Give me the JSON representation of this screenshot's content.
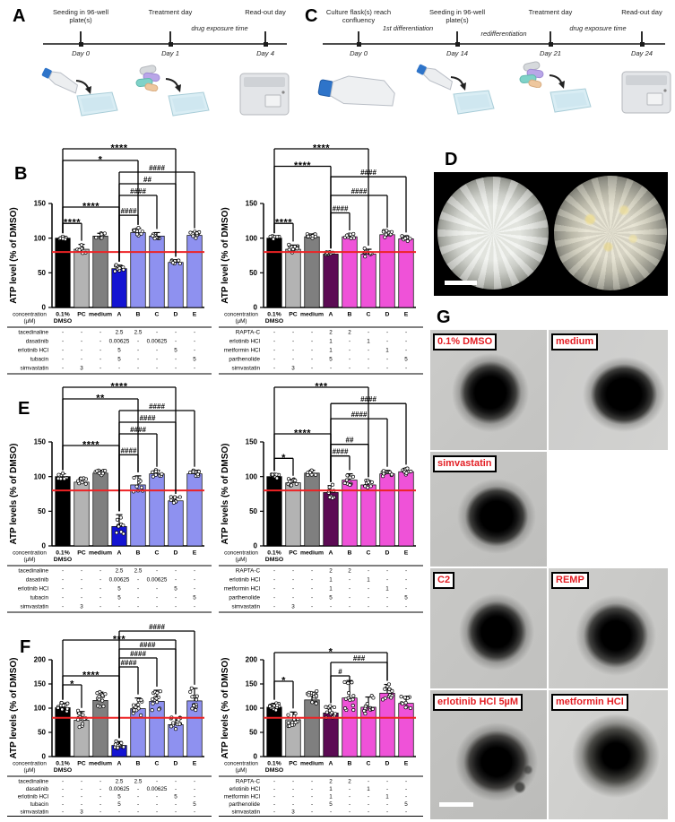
{
  "panel_letters": {
    "A": "A",
    "B": "B",
    "C": "C",
    "D": "D",
    "E": "E",
    "F": "F",
    "G": "G"
  },
  "timeline_a": {
    "milestones": [
      {
        "top": "Seeding in 96-well plate(s)",
        "day": "Day 0"
      },
      {
        "top": "Treatment day",
        "day": "Day 1"
      },
      {
        "top": "Read-out day",
        "day": "Day 4"
      }
    ],
    "interval": "drug exposure time"
  },
  "timeline_c": {
    "milestones": [
      {
        "top": "Culture flask(s) reach confluency",
        "day": "Day 0"
      },
      {
        "top": "Seeding in 96-well plate(s)",
        "day": "Day 14"
      },
      {
        "top": "Treatment day",
        "day": "Day 21"
      },
      {
        "top": "Read-out day",
        "day": "Day 24"
      }
    ],
    "intervals": [
      "1st differentiation",
      "redifferentiation",
      "drug exposure time"
    ]
  },
  "panel_g": {
    "cells": [
      {
        "label": "0.1% DMSO"
      },
      {
        "label": "medium"
      },
      {
        "label": "simvastatin"
      },
      {
        "label": ""
      },
      {
        "label": "C2"
      },
      {
        "label": "REMP"
      },
      {
        "label": "erlotinib HCl 5µM"
      },
      {
        "label": "metformin HCl"
      }
    ]
  },
  "chart_common": {
    "x_axis_title": [
      "concentration",
      "(µM)"
    ],
    "threshold": {
      "value": 80,
      "color": "#ed2224"
    }
  },
  "chart_data": [
    {
      "id": "B-left",
      "panel": "B",
      "side": "left",
      "type": "bar",
      "ylabel": "ATP level (% of DMSO)",
      "ylim": [
        0,
        150
      ],
      "yticks": [
        0,
        50,
        100,
        150
      ],
      "categories": [
        "0.1% DMSO",
        "PC",
        "medium",
        "A",
        "B",
        "C",
        "D",
        "E"
      ],
      "values": [
        100,
        84,
        103,
        56,
        108,
        103,
        65,
        104
      ],
      "errors": [
        2,
        7,
        4,
        5,
        6,
        5,
        3,
        5
      ],
      "n_points": 9,
      "bar_colors": [
        "#000000",
        "#b3b3b3",
        "#7f7f7f",
        "#1414d2",
        "#8e91f0",
        "#8e91f0",
        "#8e91f0",
        "#8e91f0"
      ],
      "brackets": [
        {
          "from": 0,
          "to": 6,
          "label": "****",
          "level": 7
        },
        {
          "from": 0,
          "to": 4,
          "label": "*",
          "level": 6
        },
        {
          "from": 3,
          "to": 7,
          "label": "####",
          "level": 5
        },
        {
          "from": 3,
          "to": 6,
          "label": "##",
          "level": 4
        },
        {
          "from": 3,
          "to": 5,
          "label": "####",
          "level": 3
        },
        {
          "from": 0,
          "to": 3,
          "label": "****",
          "level": 2
        },
        {
          "from": 3,
          "to": 4,
          "label": "####",
          "level": 1.3
        },
        {
          "from": 0,
          "to": 1,
          "label": "****",
          "level": 0.6
        }
      ],
      "dose_table": {
        "rows": [
          {
            "name": "tacedinaline",
            "values": [
              "-",
              "-",
              "-",
              "2.5",
              "2.5",
              "-",
              "-",
              "-"
            ]
          },
          {
            "name": "dasatinib",
            "values": [
              "-",
              "-",
              "-",
              "0.00625",
              "-",
              "0.00625",
              "-",
              "-"
            ]
          },
          {
            "name": "erlotinib HCl",
            "values": [
              "-",
              "-",
              "-",
              "5",
              "-",
              "-",
              "5",
              "-"
            ]
          },
          {
            "name": "tubacin",
            "values": [
              "-",
              "-",
              "-",
              "5",
              "-",
              "-",
              "-",
              "5"
            ]
          },
          {
            "name": "simvastatin",
            "values": [
              "-",
              "3",
              "-",
              "-",
              "-",
              "-",
              "-",
              "-"
            ]
          }
        ]
      }
    },
    {
      "id": "B-right",
      "panel": "B",
      "side": "right",
      "type": "bar",
      "ylabel": "ATP level (% of DMSO)",
      "ylim": [
        0,
        150
      ],
      "yticks": [
        0,
        50,
        100,
        150
      ],
      "categories": [
        "0.1% DMSO",
        "PC",
        "medium",
        "A",
        "B",
        "C",
        "D",
        "E"
      ],
      "values": [
        100,
        84,
        102,
        77,
        102,
        77,
        105,
        99
      ],
      "errors": [
        2,
        6,
        4,
        3,
        4,
        7,
        5,
        4
      ],
      "n_points": 9,
      "bar_colors": [
        "#000000",
        "#b3b3b3",
        "#7f7f7f",
        "#5c0b54",
        "#ef52d8",
        "#ef52d8",
        "#ef52d8",
        "#ef52d8"
      ],
      "brackets": [
        {
          "from": 0,
          "to": 5,
          "label": "****",
          "level": 7
        },
        {
          "from": 0,
          "to": 3,
          "label": "****",
          "level": 5.5
        },
        {
          "from": 3,
          "to": 7,
          "label": "####",
          "level": 4.6
        },
        {
          "from": 3,
          "to": 6,
          "label": "####",
          "level": 3
        },
        {
          "from": 3,
          "to": 4,
          "label": "####",
          "level": 1.5
        },
        {
          "from": 0,
          "to": 1,
          "label": "****",
          "level": 0.6
        }
      ],
      "dose_table": {
        "rows": [
          {
            "name": "RAPTA-C",
            "values": [
              "-",
              "-",
              "-",
              "2",
              "2",
              "-",
              "-",
              "-"
            ]
          },
          {
            "name": "erlotinib HCl",
            "values": [
              "-",
              "-",
              "-",
              "1",
              "-",
              "1",
              "-",
              "-"
            ]
          },
          {
            "name": "metformin HCl",
            "values": [
              "-",
              "-",
              "-",
              "1",
              "-",
              "-",
              "1",
              "-"
            ]
          },
          {
            "name": "parthenolide",
            "values": [
              "-",
              "-",
              "-",
              "5",
              "-",
              "-",
              "-",
              "5"
            ]
          },
          {
            "name": "simvastatin",
            "values": [
              "-",
              "3",
              "-",
              "-",
              "-",
              "-",
              "-",
              "-"
            ]
          }
        ]
      }
    },
    {
      "id": "E-left",
      "panel": "E",
      "side": "left",
      "type": "bar",
      "ylabel": "ATP levels (% of DMSO)",
      "ylim": [
        0,
        150
      ],
      "yticks": [
        0,
        50,
        100,
        150
      ],
      "categories": [
        "0.1% DMSO",
        "PC",
        "medium",
        "A",
        "B",
        "C",
        "D",
        "E"
      ],
      "values": [
        100,
        92,
        105,
        28,
        88,
        104,
        65,
        104
      ],
      "errors": [
        4,
        5,
        4,
        17,
        13,
        5,
        5,
        5
      ],
      "n_points": 9,
      "bar_colors": [
        "#000000",
        "#b3b3b3",
        "#7f7f7f",
        "#1414d2",
        "#8e91f0",
        "#8e91f0",
        "#8e91f0",
        "#8e91f0"
      ],
      "brackets": [
        {
          "from": 0,
          "to": 6,
          "label": "****",
          "level": 7
        },
        {
          "from": 0,
          "to": 4,
          "label": "**",
          "level": 6
        },
        {
          "from": 3,
          "to": 7,
          "label": "####",
          "level": 5
        },
        {
          "from": 3,
          "to": 6,
          "label": "####",
          "level": 4
        },
        {
          "from": 3,
          "to": 5,
          "label": "####",
          "level": 3
        },
        {
          "from": 0,
          "to": 3,
          "label": "****",
          "level": 2
        },
        {
          "from": 3,
          "to": 4,
          "label": "####",
          "level": 1.2
        }
      ],
      "dose_table": {
        "rows": [
          {
            "name": "tacedinaline",
            "values": [
              "-",
              "-",
              "-",
              "2.5",
              "2.5",
              "-",
              "-",
              "-"
            ]
          },
          {
            "name": "dasatinib",
            "values": [
              "-",
              "-",
              "-",
              "0.00625",
              "-",
              "0.00625",
              "-",
              "-"
            ]
          },
          {
            "name": "erlotinib HCl",
            "values": [
              "-",
              "-",
              "-",
              "5",
              "-",
              "-",
              "5",
              "-"
            ]
          },
          {
            "name": "tubacin",
            "values": [
              "-",
              "-",
              "-",
              "5",
              "-",
              "-",
              "-",
              "5"
            ]
          },
          {
            "name": "simvastatin",
            "values": [
              "-",
              "3",
              "-",
              "-",
              "-",
              "-",
              "-",
              "-"
            ]
          }
        ]
      }
    },
    {
      "id": "E-right",
      "panel": "E",
      "side": "right",
      "type": "bar",
      "ylabel": "ATP levels (% of DMSO)",
      "ylim": [
        0,
        150
      ],
      "yticks": [
        0,
        50,
        100,
        150
      ],
      "categories": [
        "0.1% DMSO",
        "PC",
        "medium",
        "A",
        "B",
        "C",
        "D",
        "E"
      ],
      "values": [
        100,
        91,
        105,
        77,
        95,
        88,
        104,
        107
      ],
      "errors": [
        3,
        5,
        4,
        10,
        9,
        6,
        5,
        5
      ],
      "n_points": 9,
      "bar_colors": [
        "#000000",
        "#b3b3b3",
        "#7f7f7f",
        "#5c0b54",
        "#ef52d8",
        "#ef52d8",
        "#ef52d8",
        "#ef52d8"
      ],
      "brackets": [
        {
          "from": 0,
          "to": 5,
          "label": "***",
          "level": 7
        },
        {
          "from": 3,
          "to": 7,
          "label": "####",
          "level": 5.6
        },
        {
          "from": 3,
          "to": 6,
          "label": "####",
          "level": 4.3
        },
        {
          "from": 0,
          "to": 3,
          "label": "****",
          "level": 3
        },
        {
          "from": 3,
          "to": 5,
          "label": "##",
          "level": 2.1
        },
        {
          "from": 3,
          "to": 4,
          "label": "####",
          "level": 1.1
        },
        {
          "from": 0,
          "to": 1,
          "label": "*",
          "level": 0.9
        }
      ],
      "dose_table": {
        "rows": [
          {
            "name": "RAPTA-C",
            "values": [
              "-",
              "-",
              "-",
              "2",
              "2",
              "-",
              "-",
              "-"
            ]
          },
          {
            "name": "erlotinib HCl",
            "values": [
              "-",
              "-",
              "-",
              "1",
              "-",
              "1",
              "-",
              "-"
            ]
          },
          {
            "name": "metformin HCl",
            "values": [
              "-",
              "-",
              "-",
              "1",
              "-",
              "-",
              "1",
              "-"
            ]
          },
          {
            "name": "parthenolide",
            "values": [
              "-",
              "-",
              "-",
              "5",
              "-",
              "-",
              "-",
              "5"
            ]
          },
          {
            "name": "simvastatin",
            "values": [
              "-",
              "3",
              "-",
              "-",
              "-",
              "-",
              "-",
              "-"
            ]
          }
        ]
      }
    },
    {
      "id": "F-left",
      "panel": "F",
      "side": "left",
      "type": "bar",
      "ylabel": "ATP levels (% of DMSO)",
      "ylim": [
        0,
        200
      ],
      "yticks": [
        0,
        50,
        100,
        150,
        200
      ],
      "categories": [
        "0.1% DMSO",
        "PC",
        "medium",
        "A",
        "B",
        "C",
        "D",
        "E"
      ],
      "values": [
        101,
        75,
        116,
        23,
        99,
        114,
        66,
        115
      ],
      "errors": [
        9,
        18,
        17,
        8,
        22,
        23,
        14,
        26
      ],
      "n_points": 13,
      "bar_colors": [
        "#000000",
        "#b3b3b3",
        "#7f7f7f",
        "#1414d2",
        "#8e91f0",
        "#8e91f0",
        "#8e91f0",
        "#8e91f0"
      ],
      "brackets": [
        {
          "from": 3,
          "to": 7,
          "label": "####",
          "level": 7
        },
        {
          "from": 0,
          "to": 6,
          "label": "***",
          "level": 6
        },
        {
          "from": 3,
          "to": 6,
          "label": "####",
          "level": 5
        },
        {
          "from": 3,
          "to": 5,
          "label": "####",
          "level": 4
        },
        {
          "from": 3,
          "to": 4,
          "label": "####",
          "level": 3
        },
        {
          "from": 0,
          "to": 3,
          "label": "****",
          "level": 2
        },
        {
          "from": 0,
          "to": 1,
          "label": "*",
          "level": 1
        }
      ],
      "dose_table": {
        "rows": [
          {
            "name": "tacedinaline",
            "values": [
              "-",
              "-",
              "-",
              "2.5",
              "2.5",
              "-",
              "-",
              "-"
            ]
          },
          {
            "name": "dasatinib",
            "values": [
              "-",
              "-",
              "-",
              "0.00625",
              "-",
              "0.00625",
              "-",
              "-"
            ]
          },
          {
            "name": "erlotinib HCl",
            "values": [
              "-",
              "-",
              "-",
              "5",
              "-",
              "-",
              "5",
              "-"
            ]
          },
          {
            "name": "tubacin",
            "values": [
              "-",
              "-",
              "-",
              "5",
              "-",
              "-",
              "-",
              "5"
            ]
          },
          {
            "name": "simvastatin",
            "values": [
              "-",
              "3",
              "-",
              "-",
              "-",
              "-",
              "-",
              "-"
            ]
          }
        ]
      }
    },
    {
      "id": "F-right",
      "panel": "F",
      "side": "right",
      "type": "bar",
      "ylabel": "ATP levels (% of DMSO)",
      "ylim": [
        0,
        200
      ],
      "yticks": [
        0,
        50,
        100,
        150,
        200
      ],
      "categories": [
        "0.1% DMSO",
        "PC",
        "medium",
        "A",
        "B",
        "C",
        "D",
        "E"
      ],
      "values": [
        102,
        76,
        117,
        90,
        121,
        102,
        131,
        110
      ],
      "errors": [
        8,
        16,
        16,
        13,
        36,
        21,
        18,
        13
      ],
      "n_points": 13,
      "bar_colors": [
        "#000000",
        "#b3b3b3",
        "#7f7f7f",
        "#5c0b54",
        "#ef52d8",
        "#ef52d8",
        "#ef52d8",
        "#ef52d8"
      ],
      "brackets": [
        {
          "from": 0,
          "to": 6,
          "label": "*",
          "level": 4.6
        },
        {
          "from": 3,
          "to": 6,
          "label": "###",
          "level": 3.5
        },
        {
          "from": 3,
          "to": 4,
          "label": "#",
          "level": 2
        },
        {
          "from": 0,
          "to": 1,
          "label": "*",
          "level": 1.4
        }
      ],
      "dose_table": {
        "rows": [
          {
            "name": "RAPTA-C",
            "values": [
              "-",
              "-",
              "-",
              "2",
              "2",
              "-",
              "-",
              "-"
            ]
          },
          {
            "name": "erlotinib HCl",
            "values": [
              "-",
              "-",
              "-",
              "1",
              "-",
              "1",
              "-",
              "-"
            ]
          },
          {
            "name": "metformin HCl",
            "values": [
              "-",
              "-",
              "-",
              "1",
              "-",
              "-",
              "1",
              "-"
            ]
          },
          {
            "name": "parthenolide",
            "values": [
              "-",
              "-",
              "-",
              "5",
              "-",
              "-",
              "-",
              "5"
            ]
          },
          {
            "name": "simvastatin",
            "values": [
              "-",
              "3",
              "-",
              "-",
              "-",
              "-",
              "-",
              "-"
            ]
          }
        ]
      }
    }
  ]
}
